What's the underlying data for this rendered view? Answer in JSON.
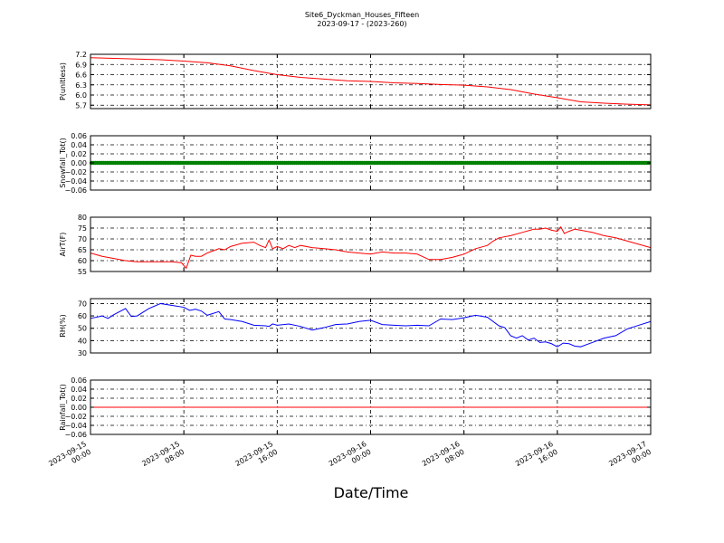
{
  "figure": {
    "title": "Site6_Dyckman_Houses_Fifteen",
    "subtitle": "2023-09-17 - (2023-260)",
    "xlabel": "Date/Time"
  },
  "chart_data": [
    {
      "type": "line",
      "ylabel": "P(unitless)",
      "ylim": [
        5.6,
        7.2
      ],
      "yticks": [
        "7.2",
        "6.9",
        "6.6",
        "6.3",
        "6.0",
        "5.7"
      ],
      "ytick_values": [
        7.2,
        6.9,
        6.6,
        6.3,
        6.0,
        5.7
      ],
      "grid": true,
      "color": "#ff0000",
      "x_hours": [
        0,
        2,
        4,
        6,
        8,
        10,
        12,
        14,
        16,
        18,
        20,
        22,
        24,
        26,
        28,
        30,
        32,
        34,
        36,
        38,
        40,
        42,
        44,
        46,
        48
      ],
      "values": [
        7.1,
        7.08,
        7.06,
        7.04,
        7.0,
        6.95,
        6.86,
        6.72,
        6.6,
        6.52,
        6.47,
        6.42,
        6.4,
        6.36,
        6.34,
        6.31,
        6.29,
        6.24,
        6.16,
        6.03,
        5.92,
        5.8,
        5.76,
        5.73,
        5.71
      ]
    },
    {
      "type": "scatter",
      "ylabel": "Snowfall_Tot()",
      "ylim": [
        -0.06,
        0.06
      ],
      "yticks": [
        "0.06",
        "0.04",
        "0.02",
        "0.00",
        "−0.02",
        "−0.04",
        "−0.06"
      ],
      "ytick_values": [
        0.06,
        0.04,
        0.02,
        0.0,
        -0.02,
        -0.04,
        -0.06
      ],
      "grid": true,
      "color": "#008000",
      "x_range_hours": [
        0,
        48
      ],
      "constant_value": 0.0
    },
    {
      "type": "line",
      "ylabel": "AirT(F)",
      "ylim": [
        55,
        80
      ],
      "yticks": [
        "80",
        "75",
        "70",
        "65",
        "60",
        "55"
      ],
      "ytick_values": [
        80,
        75,
        70,
        65,
        60,
        55
      ],
      "grid": true,
      "color": "#ff0000",
      "x_hours": [
        0,
        1,
        2,
        3,
        4,
        5,
        6,
        7,
        7.8,
        8.2,
        8.6,
        9,
        9.5,
        10,
        11,
        11.5,
        12,
        13,
        14,
        14.5,
        15,
        15.3,
        15.6,
        16,
        16.5,
        17,
        17.5,
        18,
        19,
        20,
        21,
        22,
        23,
        24,
        25,
        26,
        27,
        28,
        29,
        30,
        31,
        32,
        33,
        34,
        34.5,
        35,
        36,
        37,
        38,
        38.5,
        39,
        39.5,
        40,
        40.3,
        40.6,
        41,
        41.5,
        42,
        43,
        44,
        45,
        46,
        47,
        48
      ],
      "values": [
        63.5,
        62.0,
        61.0,
        60.0,
        59.5,
        59.5,
        59.5,
        59.5,
        59.0,
        56.5,
        62.5,
        62.0,
        62.0,
        63.5,
        65.5,
        65.0,
        66.5,
        68.0,
        68.5,
        67.0,
        66.0,
        69.5,
        65.5,
        66.5,
        65.5,
        67.0,
        66.0,
        67.0,
        66.0,
        65.5,
        65.0,
        64.0,
        63.5,
        63.0,
        64.0,
        63.5,
        63.5,
        63.0,
        60.5,
        60.5,
        61.5,
        63.0,
        65.5,
        67.0,
        69.0,
        70.5,
        71.5,
        73.0,
        74.5,
        74.5,
        75.0,
        74.0,
        73.5,
        75.5,
        72.5,
        73.5,
        74.5,
        74.0,
        73.0,
        71.5,
        70.5,
        69.0,
        67.5,
        66.0
      ]
    },
    {
      "type": "line",
      "ylabel": "RH(%)",
      "ylim": [
        30,
        74
      ],
      "yticks": [
        "70",
        "60",
        "50",
        "40",
        "30"
      ],
      "ytick_values": [
        70,
        60,
        50,
        40,
        30
      ],
      "grid": true,
      "color": "#0000ff",
      "x_hours": [
        0,
        1,
        1.5,
        2,
        3,
        3.5,
        4,
        5,
        6,
        7,
        8,
        8.5,
        9,
        9.5,
        10,
        11,
        11.5,
        12,
        13,
        14,
        15,
        15.3,
        15.6,
        16,
        17,
        18,
        19,
        20,
        21,
        22,
        23,
        24,
        25,
        26,
        27,
        28,
        29,
        30,
        31,
        32,
        33,
        34,
        35,
        35.5,
        36,
        36.5,
        37,
        37.5,
        38,
        38.5,
        39,
        39.5,
        40,
        40.5,
        41,
        41.5,
        42,
        43,
        44,
        45,
        46,
        47,
        48
      ],
      "values": [
        58.0,
        60.0,
        58.0,
        61.0,
        66.0,
        59.5,
        60.0,
        66.0,
        70.0,
        68.5,
        67.0,
        64.5,
        65.5,
        64.0,
        60.5,
        63.5,
        57.5,
        57.0,
        55.5,
        52.5,
        52.0,
        51.5,
        53.5,
        52.5,
        53.5,
        51.5,
        48.5,
        50.5,
        53.0,
        53.5,
        55.5,
        56.5,
        53.0,
        52.5,
        52.0,
        52.5,
        52.0,
        57.5,
        57.0,
        58.5,
        60.5,
        59.0,
        52.0,
        50.5,
        44.0,
        42.0,
        44.0,
        40.5,
        42.0,
        38.5,
        39.0,
        37.5,
        35.0,
        38.0,
        37.5,
        35.5,
        35.0,
        38.5,
        42.0,
        44.0,
        49.5,
        52.5,
        55.5
      ]
    },
    {
      "type": "line",
      "ylabel": "Rainfall_Tot()",
      "ylim": [
        -0.06,
        0.06
      ],
      "yticks": [
        "0.06",
        "0.04",
        "0.02",
        "0.00",
        "−0.02",
        "−0.04",
        "−0.06"
      ],
      "ytick_values": [
        0.06,
        0.04,
        0.02,
        0.0,
        -0.02,
        -0.04,
        -0.06
      ],
      "grid": true,
      "color": "#ff0000",
      "x_hours": [
        0,
        48
      ],
      "values": [
        0.0,
        0.0
      ]
    }
  ],
  "x_axis": {
    "range_hours": [
      0,
      48
    ],
    "tick_hours": [
      0,
      8,
      16,
      24,
      32,
      40,
      48
    ],
    "tick_labels": [
      [
        "2023-09-15",
        "00:00"
      ],
      [
        "2023-09-15",
        "08:00"
      ],
      [
        "2023-09-15",
        "16:00"
      ],
      [
        "2023-09-16",
        "00:00"
      ],
      [
        "2023-09-16",
        "08:00"
      ],
      [
        "2023-09-16",
        "16:00"
      ],
      [
        "2023-09-17",
        "00:00"
      ]
    ]
  }
}
